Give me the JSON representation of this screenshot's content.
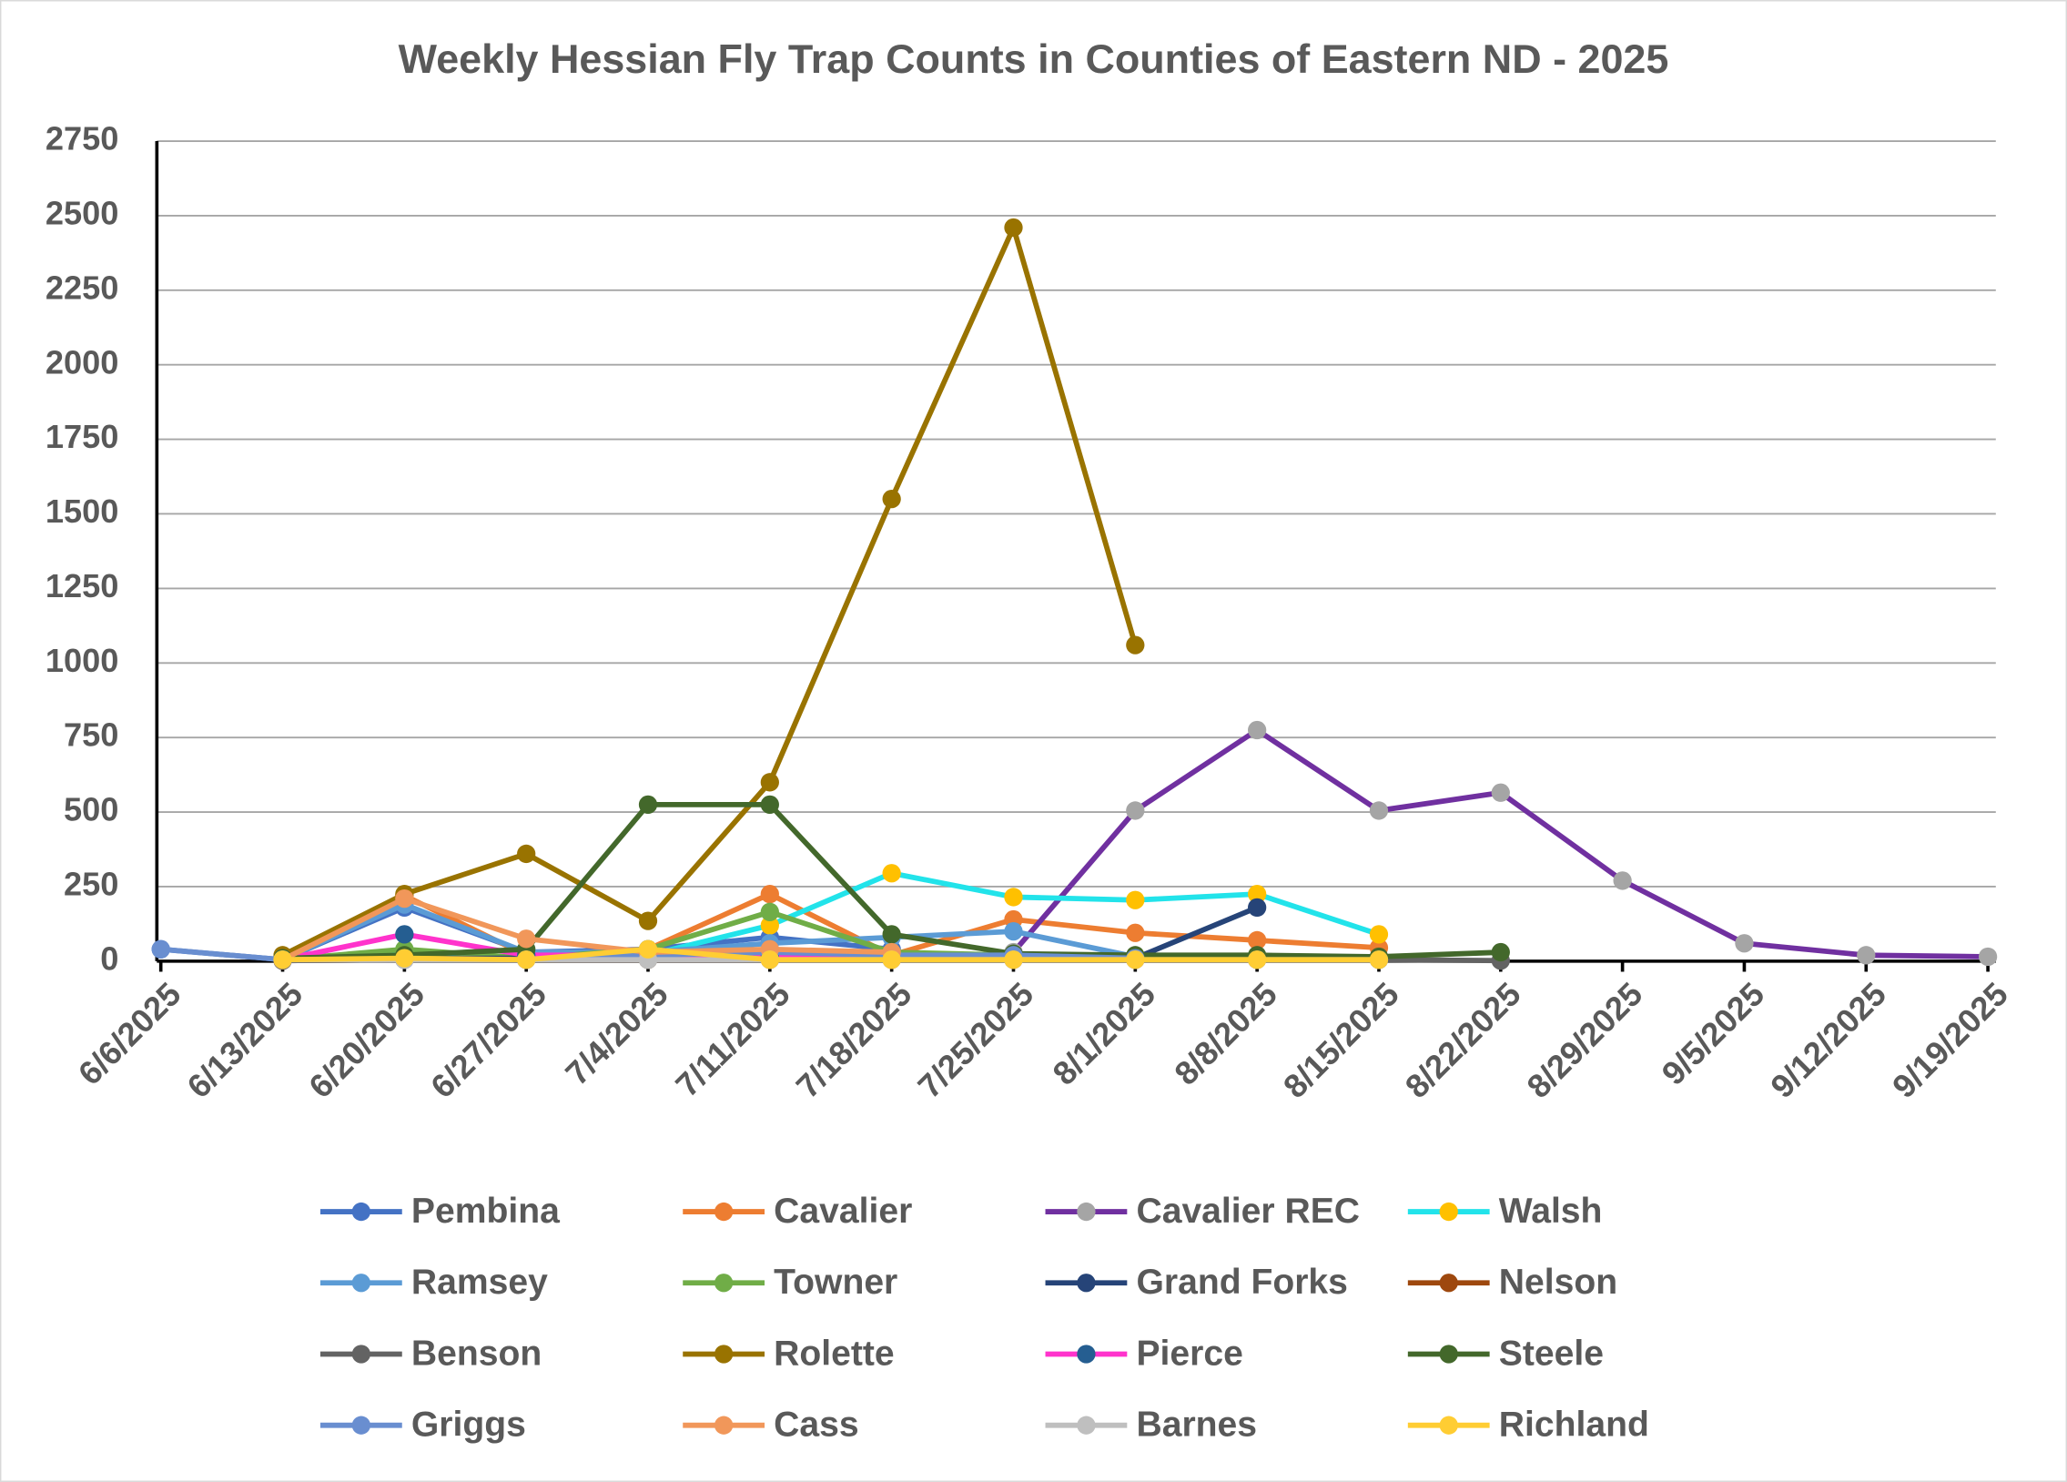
{
  "chart_data": {
    "type": "line",
    "title": "Weekly Hessian Fly Trap Counts in Counties of Eastern ND - 2025",
    "categories": [
      "6/6/2025",
      "6/13/2025",
      "6/20/2025",
      "6/27/2025",
      "7/4/2025",
      "7/11/2025",
      "7/18/2025",
      "7/25/2025",
      "8/1/2025",
      "8/8/2025",
      "8/15/2025",
      "8/22/2025",
      "8/29/2025",
      "9/5/2025",
      "9/12/2025",
      "9/19/2025"
    ],
    "ylim": [
      0,
      2750
    ],
    "yticks": [
      0,
      250,
      500,
      750,
      1000,
      1250,
      1500,
      1750,
      2000,
      2250,
      2500,
      2750
    ],
    "grid": true,
    "legend": "bottom",
    "series": [
      {
        "name": "Pembina",
        "color": "#4472c4",
        "marker_color": "#4472c4",
        "values": [
          40,
          5,
          180,
          30,
          40,
          80,
          40,
          null,
          null,
          null,
          null,
          null,
          null,
          null,
          null,
          null
        ]
      },
      {
        "name": "Cavalier",
        "color": "#ed7d31",
        "marker_color": "#ed7d31",
        "values": [
          null,
          10,
          220,
          20,
          40,
          225,
          20,
          140,
          95,
          70,
          45,
          null,
          null,
          null,
          null,
          null
        ]
      },
      {
        "name": "Cavalier REC",
        "color": "#7030a0",
        "marker_color": "#a5a5a5",
        "values": [
          null,
          null,
          null,
          null,
          null,
          null,
          null,
          30,
          505,
          775,
          505,
          565,
          270,
          60,
          20,
          15
        ]
      },
      {
        "name": "Walsh",
        "color": "#22e3ea",
        "marker_color": "#ffc000",
        "values": [
          null,
          5,
          30,
          10,
          20,
          120,
          295,
          215,
          205,
          225,
          90,
          null,
          null,
          null,
          null,
          null
        ]
      },
      {
        "name": "Ramsey",
        "color": "#5b9bd5",
        "marker_color": "#5b9bd5",
        "values": [
          null,
          5,
          190,
          30,
          30,
          60,
          80,
          100,
          15,
          10,
          5,
          null,
          null,
          null,
          null,
          null
        ]
      },
      {
        "name": "Towner",
        "color": "#70ad47",
        "marker_color": "#70ad47",
        "values": [
          null,
          5,
          40,
          10,
          40,
          165,
          30,
          20,
          10,
          10,
          5,
          null,
          null,
          null,
          null,
          null
        ]
      },
      {
        "name": "Grand Forks",
        "color": "#264478",
        "marker_color": "#264478",
        "values": [
          null,
          5,
          10,
          10,
          20,
          30,
          20,
          15,
          10,
          180,
          null,
          null,
          null,
          null,
          null,
          null
        ]
      },
      {
        "name": "Nelson",
        "color": "#9e480e",
        "marker_color": "#9e480e",
        "values": [
          null,
          2,
          5,
          5,
          5,
          5,
          5,
          5,
          5,
          5,
          5,
          null,
          null,
          null,
          null,
          null
        ]
      },
      {
        "name": "Benson",
        "color": "#636363",
        "marker_color": "#636363",
        "values": [
          null,
          2,
          5,
          5,
          5,
          5,
          5,
          5,
          5,
          5,
          5,
          2,
          null,
          null,
          null,
          null
        ]
      },
      {
        "name": "Rolette",
        "color": "#997300",
        "marker_color": "#997300",
        "values": [
          null,
          20,
          225,
          360,
          135,
          600,
          1550,
          2460,
          1060,
          null,
          null,
          null,
          null,
          null,
          null,
          null
        ]
      },
      {
        "name": "Pierce",
        "color": "#ff33cc",
        "marker_color": "#255e91",
        "values": [
          null,
          5,
          90,
          20,
          20,
          20,
          10,
          10,
          10,
          null,
          null,
          null,
          null,
          null,
          null,
          null
        ]
      },
      {
        "name": "Steele",
        "color": "#43682b",
        "marker_color": "#43682b",
        "values": [
          null,
          10,
          20,
          40,
          525,
          525,
          90,
          25,
          20,
          20,
          15,
          30,
          null,
          null,
          null,
          null
        ]
      },
      {
        "name": "Griggs",
        "color": "#698ed0",
        "marker_color": "#698ed0",
        "values": [
          40,
          5,
          5,
          5,
          20,
          30,
          20,
          20,
          10,
          null,
          null,
          null,
          null,
          null,
          null,
          null
        ]
      },
      {
        "name": "Cass",
        "color": "#f1975a",
        "marker_color": "#f1975a",
        "values": [
          null,
          5,
          210,
          75,
          30,
          40,
          30,
          null,
          null,
          null,
          null,
          null,
          null,
          null,
          null,
          null
        ]
      },
      {
        "name": "Barnes",
        "color": "#bfbfbf",
        "marker_color": "#bfbfbf",
        "values": [
          null,
          5,
          5,
          5,
          5,
          5,
          5,
          5,
          5,
          5,
          5,
          null,
          null,
          null,
          null,
          null
        ]
      },
      {
        "name": "Richland",
        "color": "#ffcd33",
        "marker_color": "#ffcd33",
        "values": [
          null,
          5,
          10,
          5,
          40,
          5,
          5,
          5,
          5,
          5,
          5,
          null,
          null,
          null,
          null,
          null
        ]
      }
    ]
  }
}
